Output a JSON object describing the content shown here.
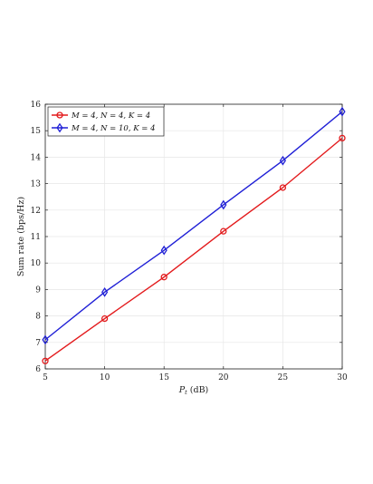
{
  "chart_data": {
    "type": "line",
    "xlabel": "P_t (dB)",
    "ylabel": "Sum rate (bps/Hz)",
    "xlim": [
      5,
      30
    ],
    "ylim": [
      6,
      16
    ],
    "xticks": [
      5,
      10,
      15,
      20,
      25,
      30
    ],
    "yticks": [
      6,
      7,
      8,
      9,
      10,
      11,
      12,
      13,
      14,
      15,
      16
    ],
    "grid": true,
    "legend_position": "top-left",
    "x": [
      5,
      10,
      15,
      20,
      25,
      30
    ],
    "series": [
      {
        "name": "M = 4, N = 4, K = 4",
        "color": "#e31a1c",
        "marker": "circle",
        "values": [
          6.3,
          7.9,
          9.47,
          11.2,
          12.85,
          14.72
        ]
      },
      {
        "name": "M = 4, N = 10, K = 4",
        "color": "#1f1fd6",
        "marker": "diamond",
        "values": [
          7.1,
          8.9,
          10.48,
          12.2,
          13.87,
          15.72
        ]
      }
    ]
  }
}
